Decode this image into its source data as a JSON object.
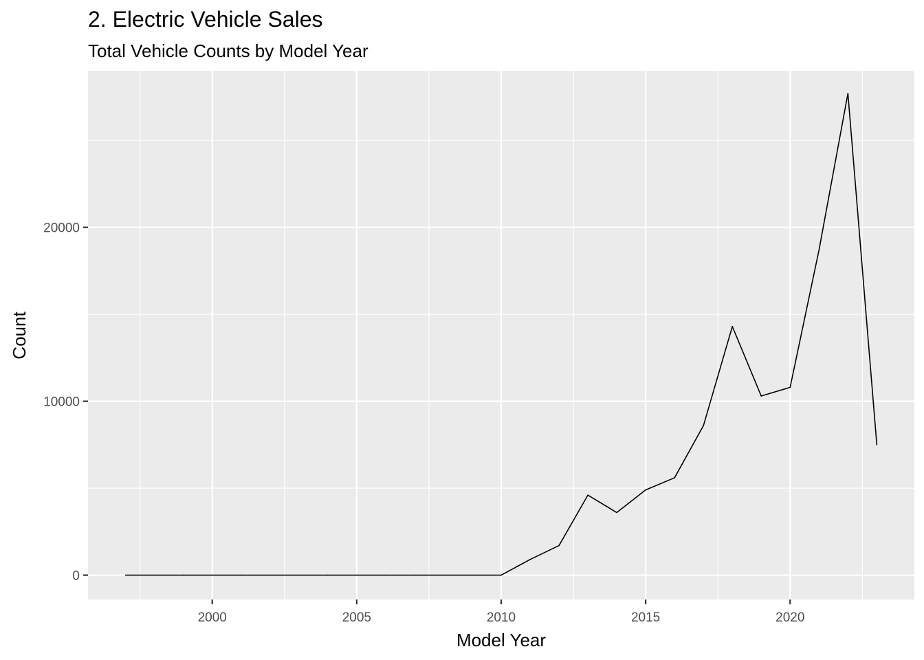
{
  "chart_data": {
    "type": "line",
    "title": "2. Electric Vehicle Sales",
    "subtitle": "Total Vehicle Counts by Model Year",
    "xlabel": "Model Year",
    "ylabel": "Count",
    "xlim": [
      1995.7,
      2024.3
    ],
    "ylim": [
      -1400,
      29000
    ],
    "xticks": [
      2000,
      2005,
      2010,
      2015,
      2020
    ],
    "yticks": [
      0,
      10000,
      20000
    ],
    "grid": true,
    "legend": "none",
    "colors": {
      "panel": "#ebebeb",
      "grid": "#ffffff",
      "line": "#000000"
    },
    "series": [
      {
        "x": [
          1997,
          1998,
          1999,
          2000,
          2001,
          2002,
          2003,
          2004,
          2005,
          2006,
          2007,
          2008,
          2009,
          2010,
          2011,
          2012,
          2013,
          2014,
          2015,
          2016,
          2017,
          2018,
          2019,
          2020,
          2021,
          2022,
          2023
        ],
        "y": [
          0,
          0,
          0,
          0,
          0,
          0,
          0,
          0,
          0,
          0,
          0,
          0,
          0,
          0,
          900,
          1700,
          4600,
          3600,
          4900,
          5600,
          8600,
          14300,
          10300,
          10800,
          18700,
          27700,
          7500
        ]
      }
    ]
  }
}
